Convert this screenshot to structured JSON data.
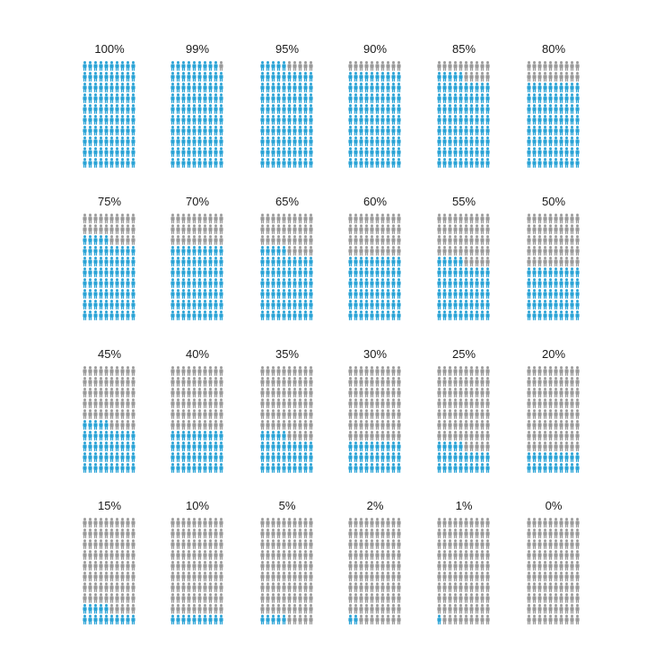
{
  "colors": {
    "filled": "#2aa3d6",
    "empty": "#9a9a9a",
    "text": "#1a1a1a"
  },
  "icon": "person-icon",
  "icons_per_panel": 100,
  "grid_columns": 10,
  "panels": [
    {
      "label": "100%",
      "value": 100
    },
    {
      "label": "99%",
      "value": 99
    },
    {
      "label": "95%",
      "value": 95
    },
    {
      "label": "90%",
      "value": 90
    },
    {
      "label": "85%",
      "value": 85
    },
    {
      "label": "80%",
      "value": 80
    },
    {
      "label": "75%",
      "value": 75
    },
    {
      "label": "70%",
      "value": 70
    },
    {
      "label": "65%",
      "value": 65
    },
    {
      "label": "60%",
      "value": 60
    },
    {
      "label": "55%",
      "value": 55
    },
    {
      "label": "50%",
      "value": 50
    },
    {
      "label": "45%",
      "value": 45
    },
    {
      "label": "40%",
      "value": 40
    },
    {
      "label": "35%",
      "value": 35
    },
    {
      "label": "30%",
      "value": 30
    },
    {
      "label": "25%",
      "value": 25
    },
    {
      "label": "20%",
      "value": 20
    },
    {
      "label": "15%",
      "value": 15
    },
    {
      "label": "10%",
      "value": 10
    },
    {
      "label": "5%",
      "value": 5
    },
    {
      "label": "2%",
      "value": 2
    },
    {
      "label": "1%",
      "value": 1
    },
    {
      "label": "0%",
      "value": 0
    }
  ]
}
